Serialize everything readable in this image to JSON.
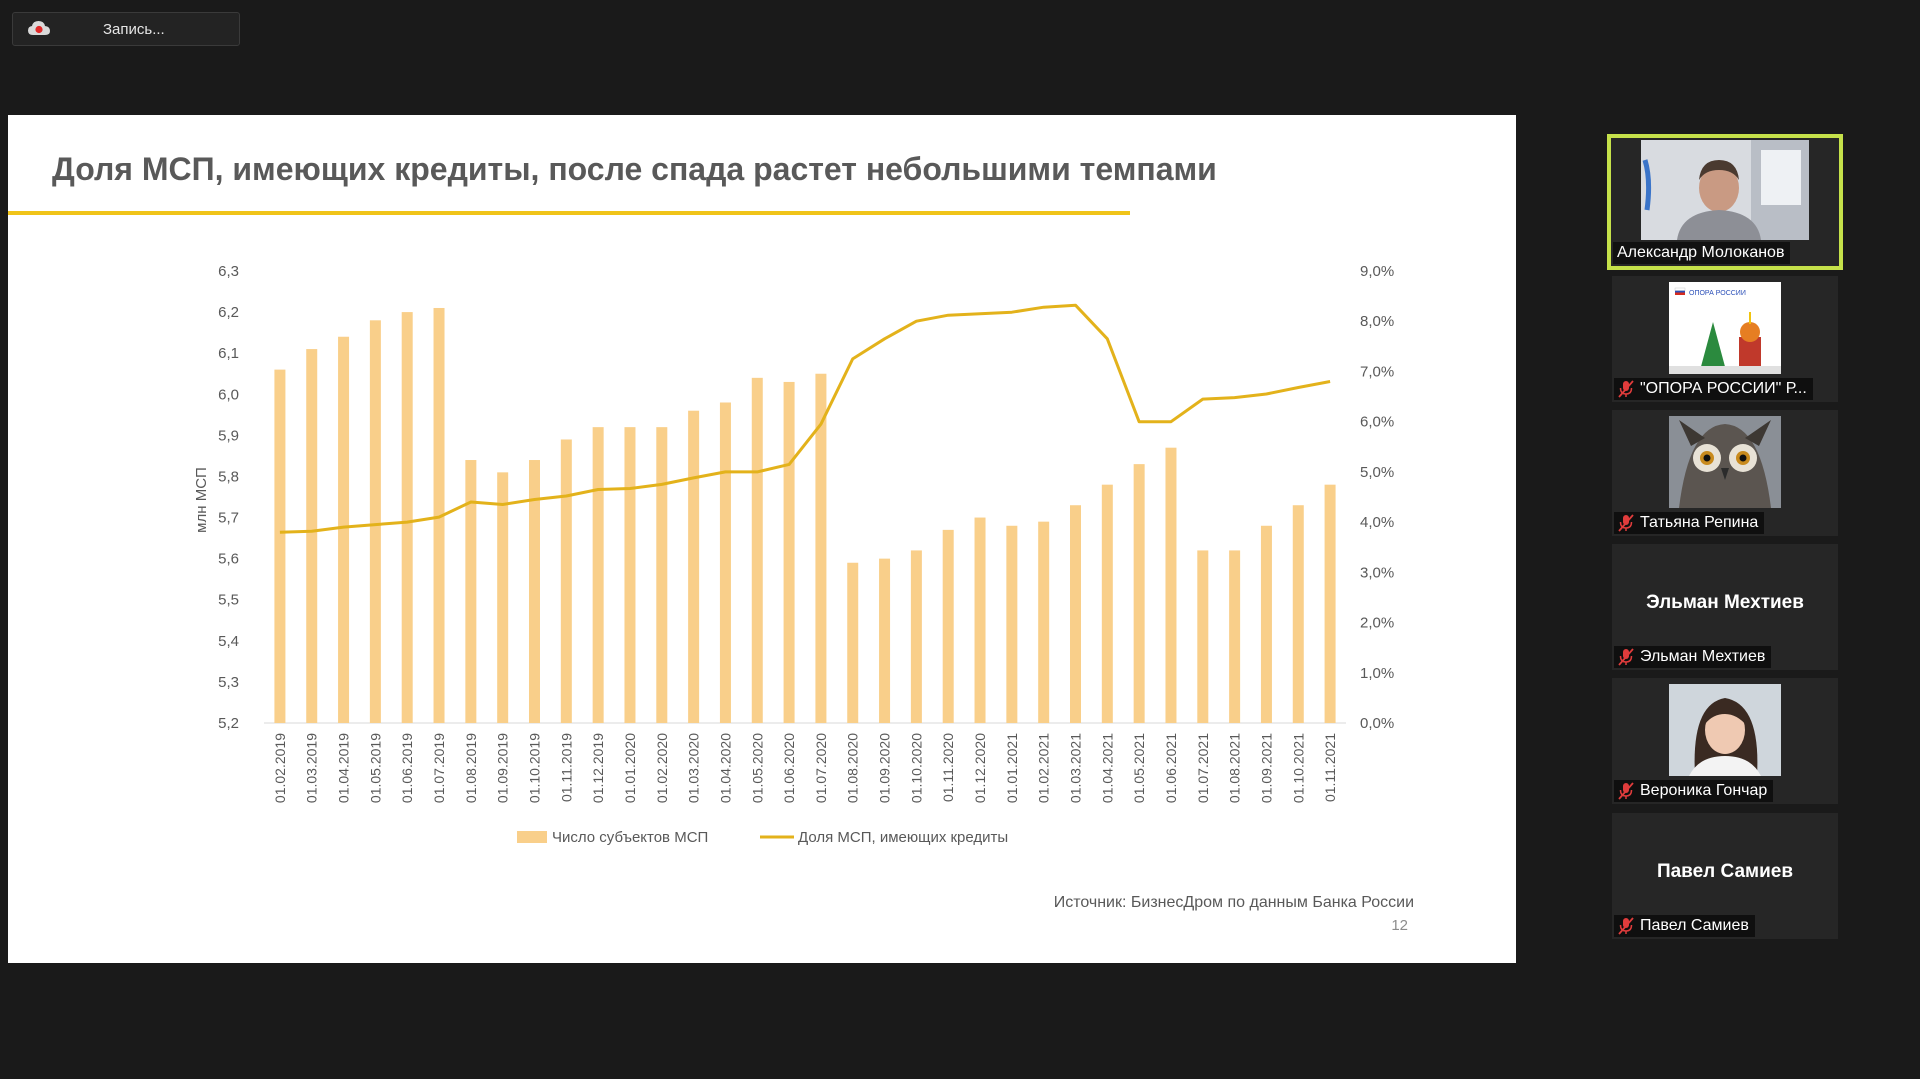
{
  "recording": {
    "label": "Запись..."
  },
  "slide": {
    "title": "Доля МСП, имеющих кредиты, после спада растет небольшими темпами",
    "source": "Источник: БизнесДром по данным Банка России",
    "page_number": "12"
  },
  "colors": {
    "bar": "#f9cf8a",
    "line": "#e3b21b",
    "accent_rule": "#f0c419",
    "active_speaker": "#c5e14a"
  },
  "chart_data": {
    "type": "bar",
    "title": "",
    "ylabel": "млн МСП",
    "y2label": "",
    "ylim": [
      5.2,
      6.3
    ],
    "y2lim": [
      0,
      9
    ],
    "y_ticks": [
      "5,2",
      "5,3",
      "5,4",
      "5,5",
      "5,6",
      "5,7",
      "5,8",
      "5,9",
      "6,0",
      "6,1",
      "6,2",
      "6,3"
    ],
    "y2_ticks": [
      "0,0%",
      "1,0%",
      "2,0%",
      "3,0%",
      "4,0%",
      "5,0%",
      "6,0%",
      "7,0%",
      "8,0%",
      "9,0%"
    ],
    "legend_position": "bottom",
    "categories": [
      "01.02.2019",
      "01.03.2019",
      "01.04.2019",
      "01.05.2019",
      "01.06.2019",
      "01.07.2019",
      "01.08.2019",
      "01.09.2019",
      "01.10.2019",
      "01.11.2019",
      "01.12.2019",
      "01.01.2020",
      "01.02.2020",
      "01.03.2020",
      "01.04.2020",
      "01.05.2020",
      "01.06.2020",
      "01.07.2020",
      "01.08.2020",
      "01.09.2020",
      "01.10.2020",
      "01.11.2020",
      "01.12.2020",
      "01.01.2021",
      "01.02.2021",
      "01.03.2021",
      "01.04.2021",
      "01.05.2021",
      "01.06.2021",
      "01.07.2021",
      "01.08.2021",
      "01.09.2021",
      "01.10.2021",
      "01.11.2021"
    ],
    "series": [
      {
        "name": "Число субъектов МСП",
        "type": "bar",
        "axis": "left",
        "values": [
          6.06,
          6.11,
          6.14,
          6.18,
          6.2,
          6.21,
          5.84,
          5.81,
          5.84,
          5.89,
          5.92,
          5.92,
          5.92,
          5.96,
          5.98,
          6.04,
          6.03,
          6.05,
          5.59,
          5.6,
          5.62,
          5.67,
          5.7,
          5.68,
          5.69,
          5.73,
          5.78,
          5.83,
          5.87,
          5.62,
          5.62,
          5.68,
          5.73,
          5.78
        ]
      },
      {
        "name": "Доля МСП, имеющих кредиты",
        "type": "line",
        "axis": "right",
        "values": [
          3.8,
          3.82,
          3.9,
          3.95,
          4.0,
          4.1,
          4.4,
          4.35,
          4.45,
          4.52,
          4.65,
          4.67,
          4.75,
          4.88,
          5.0,
          5.0,
          5.15,
          5.95,
          7.25,
          7.65,
          8.0,
          8.12,
          8.15,
          8.18,
          8.28,
          8.32,
          7.65,
          6.0,
          6.0,
          6.45,
          6.48,
          6.55,
          6.68,
          6.8
        ]
      }
    ]
  },
  "participants": [
    {
      "name": "Александр Молоканов",
      "active": true,
      "muted": false,
      "avatar": "video"
    },
    {
      "name": "\"ОПОРА РОССИИ\" Р...",
      "active": false,
      "muted": true,
      "avatar": "logo",
      "logo_text": "ОПОРА РОССИИ"
    },
    {
      "name": "Татьяна Репина",
      "active": false,
      "muted": true,
      "avatar": "owl"
    },
    {
      "name": "Эльман Мехтиев",
      "active": false,
      "muted": true,
      "avatar": "none",
      "display_name": "Эльман Мехтиев"
    },
    {
      "name": "Вероника Гончар",
      "active": false,
      "muted": true,
      "avatar": "photo"
    },
    {
      "name": "Павел Самиев",
      "active": false,
      "muted": true,
      "avatar": "none",
      "display_name": "Павел Самиев"
    }
  ]
}
